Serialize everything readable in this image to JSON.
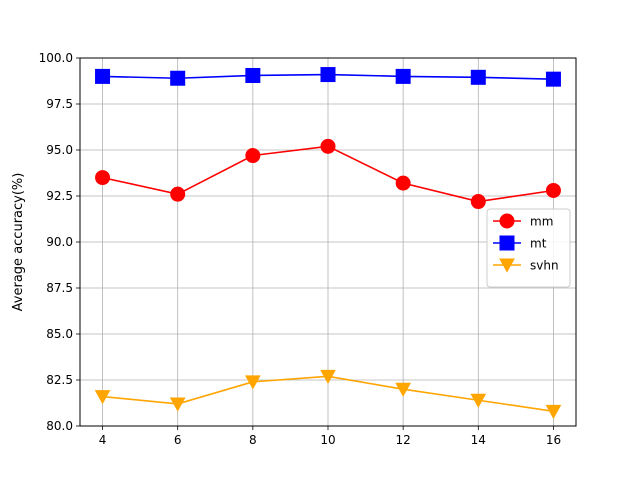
{
  "chart_data": {
    "type": "line",
    "title": "",
    "xlabel": "",
    "ylabel": "Average accuracy(%)",
    "x": [
      4,
      6,
      8,
      10,
      12,
      14,
      16
    ],
    "xticks": [
      "4",
      "6",
      "8",
      "10",
      "12",
      "14",
      "16"
    ],
    "yticks": [
      "80.0",
      "82.5",
      "85.0",
      "87.5",
      "90.0",
      "92.5",
      "95.0",
      "97.5",
      "100.0"
    ],
    "xlim": [
      3.4,
      16.6
    ],
    "ylim": [
      80.0,
      100.0
    ],
    "grid": true,
    "legend_position": "center-right",
    "series": [
      {
        "name": "mm",
        "color": "#ff0000",
        "marker": "circle",
        "values": [
          93.5,
          92.6,
          94.7,
          95.2,
          93.2,
          92.2,
          92.8
        ]
      },
      {
        "name": "mt",
        "color": "#0000ff",
        "marker": "square",
        "values": [
          99.0,
          98.9,
          99.05,
          99.1,
          99.0,
          98.95,
          98.85
        ]
      },
      {
        "name": "svhn",
        "color": "#ffa500",
        "marker": "triangle-down",
        "values": [
          81.6,
          81.2,
          82.4,
          82.7,
          82.0,
          81.4,
          80.8
        ]
      }
    ]
  }
}
